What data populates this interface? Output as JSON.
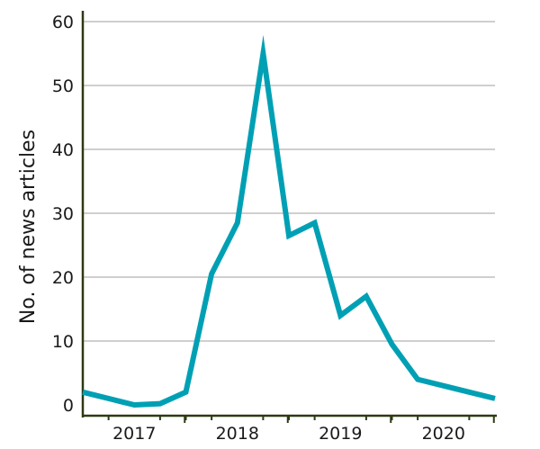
{
  "chart_data": {
    "type": "line",
    "title": "",
    "ylabel": "No. of news articles",
    "xlabel": "",
    "ylim": [
      0,
      60
    ],
    "yticks": [
      0,
      10,
      20,
      30,
      40,
      50,
      60
    ],
    "xlim": [
      2016.5,
      2020.5
    ],
    "x_tick_labels": [
      {
        "label": "2017",
        "value": 2017
      },
      {
        "label": "2018",
        "value": 2018
      },
      {
        "label": "2019",
        "value": 2019
      },
      {
        "label": "2020",
        "value": 2020
      }
    ],
    "x_minor_ticks": [
      2016.75,
      2017.25,
      2017.5,
      2017.75,
      2018.25,
      2018.5,
      2018.75,
      2019.25,
      2019.5,
      2019.75,
      2020.25
    ],
    "x_major_ticks": [
      2017,
      2018,
      2019,
      2020
    ],
    "grid": "horizontal",
    "series": [
      {
        "color": "#00a0b4",
        "x": [
          2016.5,
          2017.0,
          2017.25,
          2017.5,
          2017.75,
          2018.0,
          2018.25,
          2018.5,
          2018.75,
          2019.0,
          2019.25,
          2019.5,
          2019.75,
          2020.5
        ],
        "y": [
          2,
          0,
          0.2,
          2,
          20.5,
          28.5,
          55,
          26.5,
          28.5,
          14,
          17,
          9.5,
          4,
          1
        ]
      }
    ]
  }
}
